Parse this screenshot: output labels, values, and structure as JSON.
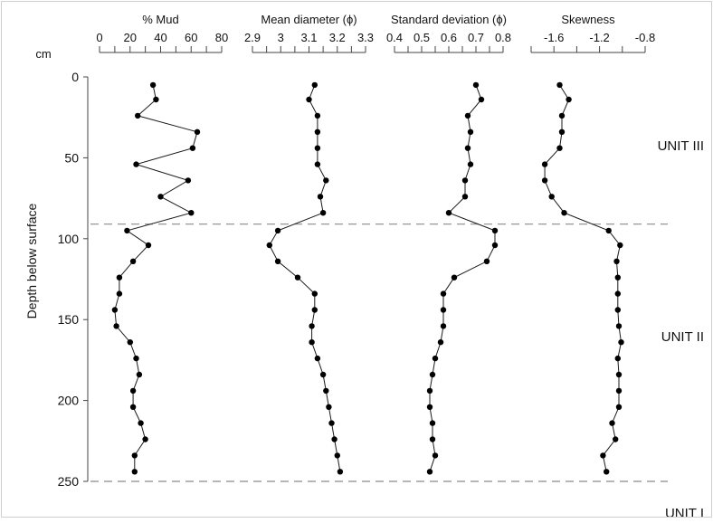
{
  "chart_data": {
    "type": "line",
    "y_axis": {
      "label": "Depth below surface",
      "unit": "cm",
      "ticks": [
        0,
        50,
        100,
        150,
        200,
        250
      ],
      "range": [
        0,
        250
      ],
      "inverted": true
    },
    "panels": [
      {
        "title": "% Mud",
        "xlim": [
          0,
          80
        ],
        "tick_labels": [
          "0",
          "20",
          "40",
          "60",
          "80"
        ],
        "tick_values": [
          0,
          20,
          40,
          60,
          80
        ],
        "minor_step": 10,
        "points": [
          {
            "x": 35,
            "y": 5
          },
          {
            "x": 37,
            "y": 14
          },
          {
            "x": 25,
            "y": 24
          },
          {
            "x": 64,
            "y": 34
          },
          {
            "x": 61,
            "y": 44
          },
          {
            "x": 24,
            "y": 54
          },
          {
            "x": 58,
            "y": 64
          },
          {
            "x": 40,
            "y": 74
          },
          {
            "x": 60,
            "y": 84
          },
          {
            "x": 18,
            "y": 95
          },
          {
            "x": 32,
            "y": 104
          },
          {
            "x": 22,
            "y": 114
          },
          {
            "x": 13,
            "y": 124
          },
          {
            "x": 13,
            "y": 134
          },
          {
            "x": 10,
            "y": 144
          },
          {
            "x": 11,
            "y": 154
          },
          {
            "x": 20,
            "y": 164
          },
          {
            "x": 24,
            "y": 174
          },
          {
            "x": 26,
            "y": 184
          },
          {
            "x": 22,
            "y": 194
          },
          {
            "x": 22,
            "y": 204
          },
          {
            "x": 27,
            "y": 214
          },
          {
            "x": 30,
            "y": 224
          },
          {
            "x": 23,
            "y": 234
          },
          {
            "x": 23,
            "y": 244
          }
        ]
      },
      {
        "title": "Mean diameter (ϕ)",
        "xlim": [
          2.9,
          3.3
        ],
        "tick_labels": [
          "2.9",
          "3",
          "3.1",
          "3.2",
          "3.3"
        ],
        "tick_values": [
          2.9,
          3.0,
          3.1,
          3.2,
          3.3
        ],
        "minor_step": 0.05,
        "points": [
          {
            "x": 3.12,
            "y": 5
          },
          {
            "x": 3.1,
            "y": 14
          },
          {
            "x": 3.13,
            "y": 24
          },
          {
            "x": 3.13,
            "y": 34
          },
          {
            "x": 3.13,
            "y": 44
          },
          {
            "x": 3.13,
            "y": 54
          },
          {
            "x": 3.16,
            "y": 64
          },
          {
            "x": 3.14,
            "y": 74
          },
          {
            "x": 3.15,
            "y": 84
          },
          {
            "x": 2.99,
            "y": 95
          },
          {
            "x": 2.96,
            "y": 104
          },
          {
            "x": 2.99,
            "y": 114
          },
          {
            "x": 3.06,
            "y": 124
          },
          {
            "x": 3.12,
            "y": 134
          },
          {
            "x": 3.12,
            "y": 144
          },
          {
            "x": 3.11,
            "y": 154
          },
          {
            "x": 3.11,
            "y": 164
          },
          {
            "x": 3.13,
            "y": 174
          },
          {
            "x": 3.15,
            "y": 184
          },
          {
            "x": 3.16,
            "y": 194
          },
          {
            "x": 3.17,
            "y": 204
          },
          {
            "x": 3.18,
            "y": 214
          },
          {
            "x": 3.19,
            "y": 224
          },
          {
            "x": 3.2,
            "y": 234
          },
          {
            "x": 3.21,
            "y": 244
          }
        ]
      },
      {
        "title": "Standard deviation (ϕ)",
        "xlim": [
          0.4,
          0.8
        ],
        "tick_labels": [
          "0.4",
          "0.5",
          "0.6",
          "0.7",
          "0.8"
        ],
        "tick_values": [
          0.4,
          0.5,
          0.6,
          0.7,
          0.8
        ],
        "minor_step": 0.05,
        "points": [
          {
            "x": 0.7,
            "y": 5
          },
          {
            "x": 0.72,
            "y": 14
          },
          {
            "x": 0.67,
            "y": 24
          },
          {
            "x": 0.68,
            "y": 34
          },
          {
            "x": 0.67,
            "y": 44
          },
          {
            "x": 0.68,
            "y": 54
          },
          {
            "x": 0.66,
            "y": 64
          },
          {
            "x": 0.66,
            "y": 74
          },
          {
            "x": 0.6,
            "y": 84
          },
          {
            "x": 0.77,
            "y": 95
          },
          {
            "x": 0.77,
            "y": 104
          },
          {
            "x": 0.74,
            "y": 114
          },
          {
            "x": 0.62,
            "y": 124
          },
          {
            "x": 0.58,
            "y": 134
          },
          {
            "x": 0.58,
            "y": 144
          },
          {
            "x": 0.58,
            "y": 154
          },
          {
            "x": 0.57,
            "y": 164
          },
          {
            "x": 0.55,
            "y": 174
          },
          {
            "x": 0.54,
            "y": 184
          },
          {
            "x": 0.53,
            "y": 194
          },
          {
            "x": 0.53,
            "y": 204
          },
          {
            "x": 0.54,
            "y": 214
          },
          {
            "x": 0.54,
            "y": 224
          },
          {
            "x": 0.55,
            "y": 234
          },
          {
            "x": 0.53,
            "y": 244
          }
        ]
      },
      {
        "title": "Skewness",
        "xlim": [
          -1.8,
          -0.8
        ],
        "tick_labels": [
          "-1.6",
          "-1.2",
          "-0.8"
        ],
        "tick_values": [
          -1.6,
          -1.2,
          -0.8
        ],
        "minor_step": 0.2,
        "points": [
          {
            "x": -1.55,
            "y": 5
          },
          {
            "x": -1.47,
            "y": 14
          },
          {
            "x": -1.53,
            "y": 24
          },
          {
            "x": -1.53,
            "y": 34
          },
          {
            "x": -1.55,
            "y": 44
          },
          {
            "x": -1.68,
            "y": 54
          },
          {
            "x": -1.68,
            "y": 64
          },
          {
            "x": -1.62,
            "y": 74
          },
          {
            "x": -1.51,
            "y": 84
          },
          {
            "x": -1.12,
            "y": 95
          },
          {
            "x": -1.02,
            "y": 104
          },
          {
            "x": -1.05,
            "y": 114
          },
          {
            "x": -1.04,
            "y": 124
          },
          {
            "x": -1.04,
            "y": 134
          },
          {
            "x": -1.04,
            "y": 144
          },
          {
            "x": -1.03,
            "y": 154
          },
          {
            "x": -1.01,
            "y": 164
          },
          {
            "x": -1.04,
            "y": 174
          },
          {
            "x": -1.03,
            "y": 184
          },
          {
            "x": -1.03,
            "y": 194
          },
          {
            "x": -1.03,
            "y": 204
          },
          {
            "x": -1.09,
            "y": 214
          },
          {
            "x": -1.06,
            "y": 224
          },
          {
            "x": -1.17,
            "y": 234
          },
          {
            "x": -1.14,
            "y": 244
          }
        ]
      }
    ],
    "boundaries": [
      {
        "depth": 91,
        "style": "dashed"
      },
      {
        "depth": 250,
        "style": "dashed"
      }
    ],
    "unit_labels": [
      {
        "text": "UNIT III",
        "depth": 42
      },
      {
        "text": "UNIT II",
        "depth": 160
      },
      {
        "text": "UNIT I",
        "depth": 272
      }
    ],
    "colors": {
      "line": "#1a1a1a",
      "marker": "#000000",
      "dashed": "#8a8a8a",
      "axis": "#444444"
    },
    "grid": false,
    "legend": "none"
  }
}
